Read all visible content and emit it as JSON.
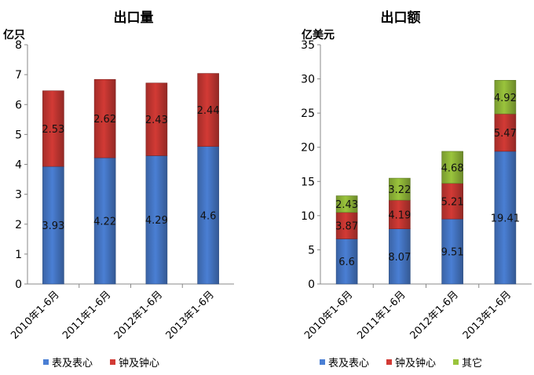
{
  "chart_data": [
    {
      "type": "bar",
      "stacked": true,
      "title": "出口量",
      "ylabel": "亿只",
      "categories": [
        "2010年1-6月",
        "2011年1-6月",
        "2012年1-6月",
        "2013年1-6月"
      ],
      "ylim": [
        0,
        8
      ],
      "yticks": [
        0,
        1,
        2,
        3,
        4,
        5,
        6,
        7,
        8
      ],
      "series": [
        {
          "name": "表及表心",
          "values": [
            3.93,
            4.22,
            4.29,
            4.6
          ],
          "labels": [
            "3.93",
            "4.22",
            "4.29",
            "4.6"
          ],
          "color": "#4a7fd4"
        },
        {
          "name": "钟及钟心",
          "values": [
            2.53,
            2.62,
            2.43,
            2.44
          ],
          "labels": [
            "2.53",
            "2.62",
            "2.43",
            "2.44"
          ],
          "color": "#d23a35"
        }
      ],
      "legend": "bottom",
      "grid": false
    },
    {
      "type": "bar",
      "stacked": true,
      "title": "出口额",
      "ylabel": "亿美元",
      "categories": [
        "2010年1-6月",
        "2011年1-6月",
        "2012年1-6月",
        "2013年1-6月"
      ],
      "ylim": [
        0,
        35
      ],
      "yticks": [
        0,
        5,
        10,
        15,
        20,
        25,
        30,
        35
      ],
      "series": [
        {
          "name": "表及表心",
          "values": [
            6.6,
            8.07,
            9.51,
            19.41
          ],
          "labels": [
            "6.6",
            "8.07",
            "9.51",
            "19.41"
          ],
          "color": "#4a7fd4"
        },
        {
          "name": "钟及钟心",
          "values": [
            3.87,
            4.19,
            5.21,
            5.47
          ],
          "labels": [
            "3.87",
            "4.19",
            "5.21",
            "5.47"
          ],
          "color": "#d23a35"
        },
        {
          "name": "其它",
          "values": [
            2.43,
            3.22,
            4.68,
            4.92
          ],
          "labels": [
            "2.43",
            "3.22",
            "4.68",
            "4.92"
          ],
          "color": "#9ac43c"
        }
      ],
      "legend": "bottom",
      "grid": false
    }
  ]
}
